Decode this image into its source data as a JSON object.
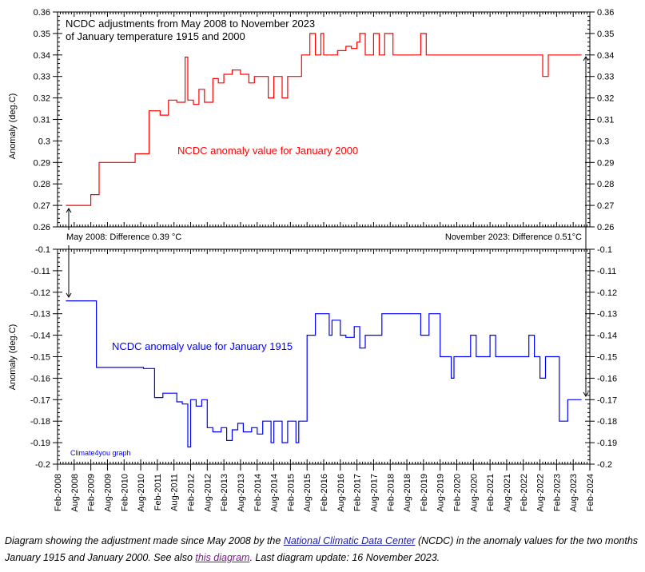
{
  "chart_data": {
    "type": "line",
    "time_range": [
      "2008-02-01",
      "2024-02-01"
    ],
    "x_tick_labels": [
      "Feb-2008",
      "Aug-2008",
      "Feb-2009",
      "Aug-2009",
      "Feb-2010",
      "Aug-2010",
      "Feb-2011",
      "Aug-2011",
      "Feb-2012",
      "Aug-2012",
      "Feb-2013",
      "Aug-2013",
      "Feb-2014",
      "Aug-2014",
      "Feb-2015",
      "Aug-2015",
      "Feb-2016",
      "Aug-2016",
      "Feb-2017",
      "Aug-2017",
      "Feb-2018",
      "Aug-2018",
      "Feb-2019",
      "Aug-2019",
      "Feb-2020",
      "Aug-2020",
      "Feb-2021",
      "Aug-2021",
      "Feb-2022",
      "Aug-2022",
      "Feb-2023",
      "Aug-2023",
      "Feb-2024"
    ],
    "grid": false,
    "panels": [
      {
        "ylabel": "Anomaly (deg.C)",
        "ylim": [
          0.26,
          0.36
        ],
        "y_tick_labels": [
          "0.26",
          "0.27",
          "0.28",
          "0.29",
          "0.3",
          "0.31",
          "0.32",
          "0.33",
          "0.34",
          "0.35",
          "0.36"
        ],
        "series": [
          {
            "name": "NCDC anomaly value for January 2000",
            "color": "#ff0000",
            "points": [
              [
                "2008-05-01",
                0.27
              ],
              [
                "2008-09-01",
                0.27
              ],
              [
                "2009-02-01",
                0.275
              ],
              [
                "2009-05-01",
                0.29
              ],
              [
                "2010-06-01",
                0.294
              ],
              [
                "2010-11-01",
                0.314
              ],
              [
                "2011-03-01",
                0.312
              ],
              [
                "2011-06-01",
                0.319
              ],
              [
                "2011-09-01",
                0.318
              ],
              [
                "2011-12-01",
                0.339
              ],
              [
                "2012-01-01",
                0.319
              ],
              [
                "2012-03-01",
                0.317
              ],
              [
                "2012-05-01",
                0.324
              ],
              [
                "2012-07-01",
                0.318
              ],
              [
                "2012-10-01",
                0.329
              ],
              [
                "2012-12-01",
                0.327
              ],
              [
                "2013-02-01",
                0.331
              ],
              [
                "2013-05-01",
                0.333
              ],
              [
                "2013-08-01",
                0.331
              ],
              [
                "2013-11-01",
                0.327
              ],
              [
                "2014-01-01",
                0.33
              ],
              [
                "2014-06-01",
                0.32
              ],
              [
                "2014-08-01",
                0.33
              ],
              [
                "2014-11-01",
                0.32
              ],
              [
                "2015-01-01",
                0.33
              ],
              [
                "2015-06-01",
                0.34
              ],
              [
                "2015-09-01",
                0.35
              ],
              [
                "2015-11-01",
                0.34
              ],
              [
                "2016-01-01",
                0.35
              ],
              [
                "2016-02-01",
                0.34
              ],
              [
                "2016-07-01",
                0.342
              ],
              [
                "2016-10-01",
                0.344
              ],
              [
                "2016-12-01",
                0.343
              ],
              [
                "2017-02-01",
                0.346
              ],
              [
                "2017-03-01",
                0.35
              ],
              [
                "2017-05-01",
                0.34
              ],
              [
                "2017-08-01",
                0.35
              ],
              [
                "2017-10-01",
                0.34
              ],
              [
                "2017-12-01",
                0.35
              ],
              [
                "2018-03-01",
                0.34
              ],
              [
                "2019-01-01",
                0.35
              ],
              [
                "2019-03-01",
                0.34
              ],
              [
                "2022-09-01",
                0.33
              ],
              [
                "2022-11-01",
                0.34
              ],
              [
                "2023-11-01",
                0.34
              ]
            ]
          }
        ]
      },
      {
        "ylabel": "Anomaly (deg.C)",
        "ylim": [
          -0.2,
          -0.1
        ],
        "y_tick_labels": [
          "-0.2",
          "-0.19",
          "-0.18",
          "-0.17",
          "-0.16",
          "-0.15",
          "-0.14",
          "-0.13",
          "-0.12",
          "-0.11",
          "-0.1"
        ],
        "series": [
          {
            "name": "NCDC anomaly value for January 1915",
            "color": "#0000ff",
            "points": [
              [
                "2008-05-01",
                -0.124
              ],
              [
                "2009-04-01",
                -0.155
              ],
              [
                "2010-09-01",
                -0.1555
              ],
              [
                "2011-01-01",
                -0.169
              ],
              [
                "2011-04-01",
                -0.167
              ],
              [
                "2011-09-01",
                -0.171
              ],
              [
                "2011-11-01",
                -0.172
              ],
              [
                "2012-01-01",
                -0.192
              ],
              [
                "2012-02-01",
                -0.17
              ],
              [
                "2012-04-01",
                -0.173
              ],
              [
                "2012-06-01",
                -0.17
              ],
              [
                "2012-08-01",
                -0.183
              ],
              [
                "2012-10-01",
                -0.185
              ],
              [
                "2013-01-01",
                -0.183
              ],
              [
                "2013-03-01",
                -0.189
              ],
              [
                "2013-05-01",
                -0.184
              ],
              [
                "2013-07-01",
                -0.181
              ],
              [
                "2013-09-01",
                -0.185
              ],
              [
                "2013-12-01",
                -0.183
              ],
              [
                "2014-02-01",
                -0.186
              ],
              [
                "2014-04-01",
                -0.18
              ],
              [
                "2014-07-01",
                -0.19
              ],
              [
                "2014-08-01",
                -0.18
              ],
              [
                "2014-11-01",
                -0.19
              ],
              [
                "2015-01-01",
                -0.18
              ],
              [
                "2015-04-01",
                -0.19
              ],
              [
                "2015-05-01",
                -0.18
              ],
              [
                "2015-08-01",
                -0.14
              ],
              [
                "2015-11-01",
                -0.13
              ],
              [
                "2016-04-01",
                -0.14
              ],
              [
                "2016-05-01",
                -0.133
              ],
              [
                "2016-08-01",
                -0.14
              ],
              [
                "2016-10-01",
                -0.141
              ],
              [
                "2017-01-01",
                -0.136
              ],
              [
                "2017-03-01",
                -0.146
              ],
              [
                "2017-05-01",
                -0.14
              ],
              [
                "2017-11-01",
                -0.13
              ],
              [
                "2019-01-01",
                -0.14
              ],
              [
                "2019-04-01",
                -0.13
              ],
              [
                "2019-08-01",
                -0.15
              ],
              [
                "2019-12-01",
                -0.16
              ],
              [
                "2020-01-01",
                -0.15
              ],
              [
                "2020-07-01",
                -0.14
              ],
              [
                "2020-09-01",
                -0.15
              ],
              [
                "2021-02-01",
                -0.14
              ],
              [
                "2021-04-01",
                -0.15
              ],
              [
                "2022-04-01",
                -0.14
              ],
              [
                "2022-06-01",
                -0.15
              ],
              [
                "2022-08-01",
                -0.16
              ],
              [
                "2022-10-01",
                -0.15
              ],
              [
                "2023-03-01",
                -0.18
              ],
              [
                "2023-06-01",
                -0.17
              ],
              [
                "2023-11-01",
                -0.17
              ]
            ]
          }
        ]
      }
    ],
    "title_lines": [
      "NCDC adjustments from May 2008 to November 2023",
      "of January temperature 1915 and 2000"
    ],
    "annotations": {
      "left_diff": "May 2008: Difference 0.39 °C",
      "right_diff": "November 2023: Difference 0.51°C",
      "credit": "Climate4you graph"
    }
  },
  "caption": {
    "part1": "Diagram showing the adjustment made since May 2008 by the ",
    "link1": "National Climatic Data Center",
    "part2": " (NCDC) in the anomaly values for  the two months January 1915 and January 2000. See also ",
    "link2": "this diagram",
    "part3": ". Last diagram update: 16 November 2023."
  }
}
